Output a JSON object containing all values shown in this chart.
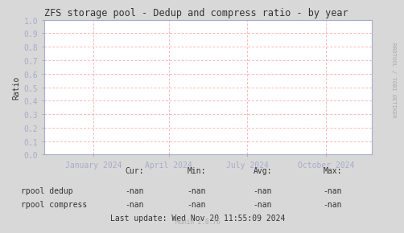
{
  "title": "ZFS storage pool - Dedup and compress ratio - by year",
  "ylabel": "Ratio",
  "ylim": [
    0.0,
    1.0
  ],
  "yticks": [
    0.0,
    0.1,
    0.2,
    0.3,
    0.4,
    0.5,
    0.6,
    0.7,
    0.8,
    0.9,
    1.0
  ],
  "ytick_labels": [
    "0.0",
    "0.1",
    "0.2",
    "0.3",
    "0.4",
    "0.5",
    "0.6",
    "0.7",
    "0.8",
    "0.9",
    "1.0"
  ],
  "xtick_labels": [
    "January 2024",
    "April 2024",
    "July 2024",
    "October 2024"
  ],
  "xtick_positions": [
    0.15,
    0.38,
    0.62,
    0.86
  ],
  "bg_color": "#d8d8d8",
  "plot_bg_color": "#ffffff",
  "grid_color": "#ff9999",
  "axis_color": "#aaaacc",
  "text_color": "#333333",
  "legend_items": [
    {
      "label": "rpool dedup",
      "color": "#00cc00"
    },
    {
      "label": "rpool compress",
      "color": "#0000ff"
    }
  ],
  "stats_headers": [
    "Cur:",
    "Min:",
    "Avg:",
    "Max:"
  ],
  "stats_row1": [
    "-nan",
    "-nan",
    "-nan",
    "-nan"
  ],
  "stats_row2": [
    "-nan",
    "-nan",
    "-nan",
    "-nan"
  ],
  "watermark": "RRDTOOL / TOBI OETIKER",
  "footer": "Munin 2.0.76",
  "last_update": "Last update: Wed Nov 20 11:55:09 2024",
  "font_family": "DejaVu Sans Mono",
  "title_fontsize": 8.5,
  "axis_label_fontsize": 7.0,
  "tick_fontsize": 7.0,
  "legend_fontsize": 7.0,
  "footer_fontsize": 5.5,
  "watermark_fontsize": 5.0
}
